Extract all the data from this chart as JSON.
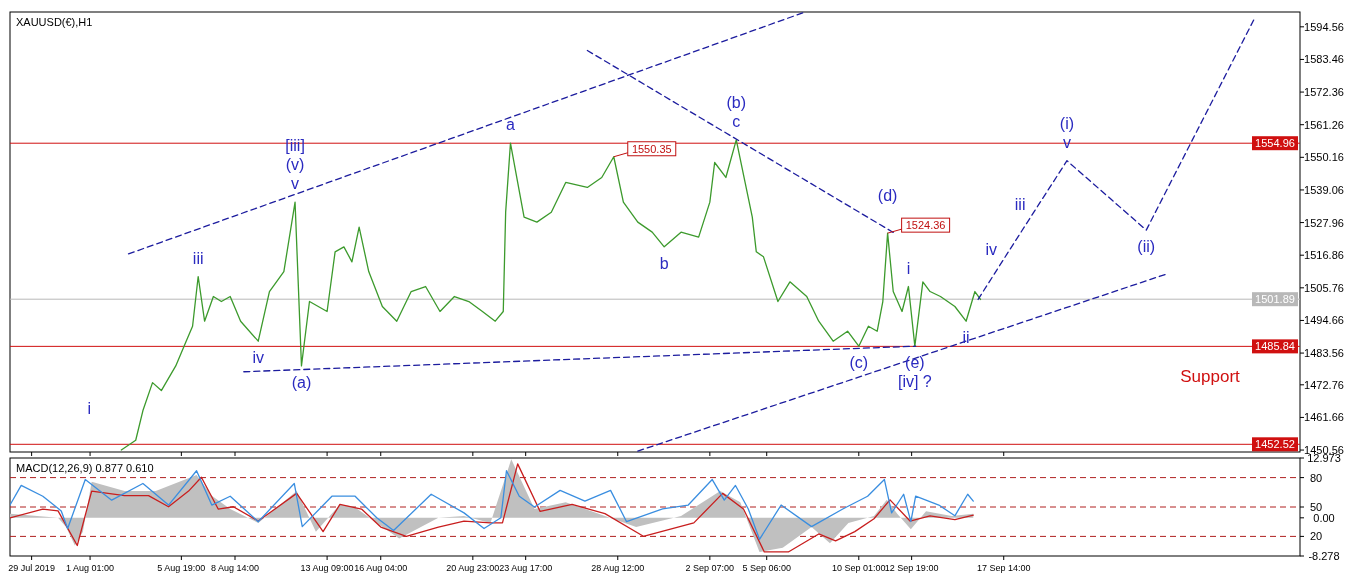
{
  "chart_data": [
    {
      "type": "line",
      "title": "XAUUSD(€),H1",
      "xlim": [
        "2019-07-27T21:00",
        "2019-10-03T00:00"
      ],
      "ylim": [
        1449.9,
        1599.6
      ],
      "tick_labels": "y",
      "xticks": [
        {
          "value": "2019-07-29T00:00",
          "label": null
        },
        {
          "value": "2019-08-01T01:00",
          "label": null
        },
        {
          "value": "2019-08-05T19:00",
          "label": null
        },
        {
          "value": "2019-08-08T14:00",
          "label": null
        },
        {
          "value": "2019-08-13T09:00",
          "label": null
        },
        {
          "value": "2019-08-16T04:00",
          "label": null
        },
        {
          "value": "2019-08-20T23:00",
          "label": null
        },
        {
          "value": "2019-08-23T17:00",
          "label": null
        },
        {
          "value": "2019-08-28T12:00",
          "label": null
        },
        {
          "value": "2019-09-02T07:00",
          "label": null
        },
        {
          "value": "2019-09-05T06:00",
          "label": null
        },
        {
          "value": "2019-09-10T01:00",
          "label": null
        },
        {
          "value": "2019-09-12T19:00",
          "label": null
        },
        {
          "value": "2019-09-17T14:00",
          "label": null
        }
      ],
      "yticks": [
        1594.56,
        1583.46,
        1572.36,
        1561.26,
        1550.16,
        1539.06,
        1527.96,
        1516.86,
        1505.76,
        1494.66,
        1483.56,
        1472.76,
        1461.66,
        1450.56
      ],
      "series": [
        {
          "color": "#3c9a2c",
          "x": [
            "2019-08-02T16:00",
            "2019-08-03T10:00",
            "2019-08-03T19:00",
            "2019-08-04T07:00",
            "2019-08-04T18:00",
            "2019-08-05T12:00",
            "2019-08-06T01:00",
            "2019-08-06T09:00",
            "2019-08-06T16:00",
            "2019-08-07T00:00",
            "2019-08-07T11:00",
            "2019-08-07T21:00",
            "2019-08-08T08:00",
            "2019-08-08T21:00",
            "2019-08-09T19:00",
            "2019-08-10T09:00",
            "2019-08-11T03:00",
            "2019-08-11T17:00",
            "2019-08-12T01:00",
            "2019-08-12T11:00",
            "2019-08-13T09:00",
            "2019-08-13T19:00",
            "2019-08-14T06:00",
            "2019-08-14T16:00",
            "2019-08-15T01:00",
            "2019-08-15T13:00",
            "2019-08-16T06:00",
            "2019-08-17T00:00",
            "2019-08-17T18:00",
            "2019-08-18T12:00",
            "2019-08-19T06:00",
            "2019-08-20T00:00",
            "2019-08-20T18:00",
            "2019-08-21T11:00",
            "2019-08-22T03:00",
            "2019-08-22T13:00",
            "2019-08-22T16:00",
            "2019-08-22T22:00",
            "2019-08-23T07:00",
            "2019-08-23T15:00",
            "2019-08-24T07:00",
            "2019-08-25T01:00",
            "2019-08-25T19:00",
            "2019-08-26T22:00",
            "2019-08-27T16:00",
            "2019-08-28T07:00",
            "2019-08-28T19:00",
            "2019-08-29T13:00",
            "2019-08-30T07:00",
            "2019-08-30T22:00",
            "2019-08-31T19:00",
            "2019-09-01T17:00",
            "2019-09-02T07:00",
            "2019-09-02T13:00",
            "2019-09-03T03:00",
            "2019-09-03T16:00",
            "2019-09-04T03:00",
            "2019-09-04T12:00",
            "2019-09-04T17:00",
            "2019-09-05T02:00",
            "2019-09-05T20:00",
            "2019-09-06T11:00",
            "2019-09-07T08:00",
            "2019-09-07T23:00",
            "2019-09-08T17:00",
            "2019-09-09T11:00",
            "2019-09-10T01:00",
            "2019-09-10T13:00",
            "2019-09-11T00:00",
            "2019-09-11T07:00",
            "2019-09-11T13:00",
            "2019-09-11T20:00",
            "2019-09-12T07:00",
            "2019-09-12T15:00",
            "2019-09-12T23:00",
            "2019-09-13T09:00",
            "2019-09-13T18:00",
            "2019-09-14T07:00",
            "2019-09-15T01:00",
            "2019-09-15T15:00",
            "2019-09-16T02:00",
            "2019-09-16T09:00"
          ],
          "values": [
            1450.6,
            1453.9,
            1464.0,
            1473.5,
            1470.8,
            1479.2,
            1487.6,
            1492.7,
            1509.6,
            1494.4,
            1502.8,
            1501.1,
            1502.8,
            1494.4,
            1487.6,
            1504.5,
            1511.3,
            1534.9,
            1479.2,
            1501.1,
            1497.7,
            1518.0,
            1519.7,
            1514.6,
            1526.4,
            1511.3,
            1499.4,
            1494.4,
            1504.5,
            1506.2,
            1497.7,
            1502.8,
            1501.1,
            1497.7,
            1494.4,
            1497.7,
            1531.5,
            1555.0,
            1541.6,
            1529.8,
            1528.1,
            1531.5,
            1541.6,
            1539.9,
            1543.3,
            1550.35,
            1534.9,
            1528.1,
            1524.7,
            1519.7,
            1524.7,
            1523.0,
            1534.9,
            1548.4,
            1543.3,
            1556.1,
            1541.6,
            1529.8,
            1518.0,
            1516.3,
            1501.1,
            1507.8,
            1502.8,
            1494.4,
            1487.6,
            1491.0,
            1485.9,
            1492.7,
            1491.0,
            1501.1,
            1524.36,
            1504.5,
            1497.7,
            1506.2,
            1485.9,
            1507.8,
            1504.5,
            1502.8,
            1499.4,
            1494.4,
            1504.5,
            1501.8
          ]
        },
        {
          "color": "#1c1c9e",
          "line_style": "dashed",
          "x": [
            "2019-08-03T01:00",
            "2019-09-07T05:00"
          ],
          "values": [
            1517.3,
            1599.5
          ]
        },
        {
          "color": "#1c1c9e",
          "line_style": "dashed",
          "x": [
            "2019-08-26T22:00",
            "2019-09-11T20:00"
          ],
          "values": [
            1586.5,
            1524.6
          ]
        },
        {
          "color": "#1c1c9e",
          "line_style": "dashed",
          "x": [
            "2019-08-09T01:00",
            "2019-09-13T00:00"
          ],
          "values": [
            1477.2,
            1485.9
          ]
        },
        {
          "color": "#1c1c9e",
          "line_style": "dashed",
          "x": [
            "2019-08-29T13:00",
            "2019-09-26T03:00"
          ],
          "values": [
            1450.2,
            1510.6
          ]
        },
        {
          "color": "#1c1c9e",
          "line_style": "dashed",
          "x": [
            "2019-09-16T06:00",
            "2019-09-17T21:00",
            "2019-09-19T09:00",
            "2019-09-20T21:00",
            "2019-09-25T00:00",
            "2019-09-30T15:00"
          ],
          "values": [
            1501.8,
            1518.5,
            1533.8,
            1549.0,
            1525.4,
            1597.3
          ]
        }
      ],
      "ref_lines": [
        {
          "axis": "y",
          "value": 1554.96,
          "label": "1554.96",
          "color": "#d01010"
        },
        {
          "axis": "y",
          "value": 1501.89,
          "label": "1501.89",
          "color": "#b8b8b8"
        },
        {
          "axis": "y",
          "value": 1485.84,
          "label": "1485.84",
          "color": "#d01010"
        },
        {
          "axis": "y",
          "value": 1452.52,
          "label": "1452.52",
          "color": "#d01010"
        }
      ],
      "annotations": [
        {
          "text": "v",
          "x": "2019-08-11T17:00",
          "y": 1534.9
        },
        {
          "text": "(v)",
          "x": "2019-08-11T17:00",
          "y": 1534.9
        },
        {
          "text": "[iii]",
          "x": "2019-08-11T17:00",
          "y": 1534.9
        },
        {
          "text": "iii",
          "x": "2019-08-06T16:00",
          "y": 1509.6
        },
        {
          "text": "iv",
          "x": "2019-08-09T19:00",
          "y": 1487.6
        },
        {
          "text": "i",
          "x": "2019-08-02T16:00",
          "y": 1450.6
        },
        {
          "text": "(a)",
          "x": "2019-08-12T01:00",
          "y": 1479.2
        },
        {
          "text": "a",
          "x": "2019-08-22T22:00",
          "y": 1555.0
        },
        {
          "text": "b",
          "x": "2019-08-30T22:00",
          "y": 1519.7
        },
        {
          "text": "c",
          "x": "2019-09-03T16:00",
          "y": 1556.1
        },
        {
          "text": "(b)",
          "x": "2019-09-03T16:00",
          "y": 1556.1
        },
        {
          "text": "1550.35",
          "x": "2019-08-28T07:00",
          "y": 1550.35
        },
        {
          "text": "1524.36",
          "x": "2019-09-11T13:00",
          "y": 1524.36
        },
        {
          "text": "(d)",
          "x": "2019-09-11T13:00",
          "y": 1524.36
        },
        {
          "text": "i",
          "x": "2019-09-12T15:00",
          "y": 1506.2
        },
        {
          "text": "(c)",
          "x": "2019-09-10T01:00",
          "y": 1485.9
        },
        {
          "text": "(e)",
          "x": "2019-09-12T23:00",
          "y": 1485.9
        },
        {
          "text": "[iv] ?",
          "x": "2019-09-12T23:00",
          "y": 1485.9
        },
        {
          "text": "ii",
          "x": "2019-09-15T15:00",
          "y": 1494.4
        },
        {
          "text": "iv",
          "x": "2019-09-17T21:00",
          "y": 1518.5
        },
        {
          "text": "iii",
          "x": "2019-09-19T09:00",
          "y": 1533.8
        },
        {
          "text": "v",
          "x": "2019-09-20T21:00",
          "y": 1549.0
        },
        {
          "text": "(i)",
          "x": "2019-09-20T21:00",
          "y": 1549.0
        },
        {
          "text": "(ii)",
          "x": "2019-09-25T00:00",
          "y": 1525.4
        },
        "Support"
      ]
    },
    {
      "type": "line",
      "title": "MACD(12,26,9) 0.877 0.610",
      "xlim": [
        "2019-07-27T21:00",
        "2019-10-03T00:00"
      ],
      "ylim": [
        -8.278,
        12.973
      ],
      "y2lim": [
        0,
        100
      ],
      "xticks": [
        {
          "value": "2019-07-29T00:00",
          "label": "29 Jul 2019"
        },
        {
          "value": "2019-08-01T01:00",
          "label": "1 Aug 01:00"
        },
        {
          "value": "2019-08-05T19:00",
          "label": "5 Aug 19:00"
        },
        {
          "value": "2019-08-08T14:00",
          "label": "8 Aug 14:00"
        },
        {
          "value": "2019-08-13T09:00",
          "label": "13 Aug 09:00"
        },
        {
          "value": "2019-08-16T04:00",
          "label": "16 Aug 04:00"
        },
        {
          "value": "2019-08-20T23:00",
          "label": "20 Aug 23:00"
        },
        {
          "value": "2019-08-23T17:00",
          "label": "23 Aug 17:00"
        },
        {
          "value": "2019-08-28T12:00",
          "label": "28 Aug 12:00"
        },
        {
          "value": "2019-09-02T07:00",
          "label": "2 Sep 07:00"
        },
        {
          "value": "2019-09-05T06:00",
          "label": "5 Sep 06:00"
        },
        {
          "value": "2019-09-10T01:00",
          "label": "10 Sep 01:00"
        },
        {
          "value": "2019-09-12T19:00",
          "label": "12 Sep 19:00"
        },
        {
          "value": "2019-09-17T14:00",
          "label": "17 Sep 14:00"
        }
      ],
      "yticks": [
        12.973,
        {
          "value": 0,
          "label": "0.00"
        },
        -8.278
      ],
      "y2ticks": [
        80,
        50,
        20
      ],
      "series": [
        {
          "type": "area",
          "color": "#c0c0c0",
          "x": [
            "2019-07-27T21:00",
            "2019-07-30T09:00",
            "2019-07-30T19:00",
            "2019-07-31T06:00",
            "2019-07-31T16:00",
            "2019-08-01T03:00",
            "2019-08-02T20:00",
            "2019-08-04T11:00",
            "2019-08-06T14:00",
            "2019-08-07T09:00",
            "2019-08-08T08:00",
            "2019-08-09T19:00",
            "2019-08-11T19:00",
            "2019-08-12T19:00",
            "2019-08-14T01:00",
            "2019-08-14T19:00",
            "2019-08-15T23:00",
            "2019-08-17T03:00",
            "2019-08-19T04:00",
            "2019-08-20T12:00",
            "2019-08-21T21:00",
            "2019-08-22T23:00",
            "2019-08-24T04:00",
            "2019-08-25T19:00",
            "2019-08-27T20:00",
            "2019-08-29T11:00",
            "2019-08-31T19:00",
            "2019-09-02T20:00",
            "2019-09-03T21:00",
            "2019-09-04T21:00",
            "2019-09-06T02:00",
            "2019-09-07T14:00",
            "2019-09-08T13:00",
            "2019-09-09T12:00",
            "2019-09-10T20:00",
            "2019-09-11T12:00",
            "2019-09-12T01:00",
            "2019-09-12T18:00",
            "2019-09-13T13:00",
            "2019-09-14T21:00",
            "2019-09-16T00:00"
          ],
          "values": [
            0.9,
            0.0,
            -2.0,
            -6.0,
            -3.0,
            7.8,
            5.8,
            5.8,
            9.3,
            4.8,
            1.9,
            -1.1,
            5.8,
            -3.0,
            2.9,
            2.4,
            -1.1,
            -4.5,
            0.0,
            0.4,
            -1.1,
            12.7,
            1.9,
            3.4,
            0.4,
            -2.0,
            0.4,
            5.8,
            3.4,
            -7.4,
            -6.5,
            -2.0,
            -5.5,
            -1.1,
            0.4,
            3.9,
            0.9,
            -2.5,
            1.4,
            0.4,
            0.9
          ]
        },
        {
          "color": "#c81e1e",
          "x": [
            "2019-07-27T21:00",
            "2019-07-29T14:00",
            "2019-07-30T09:00",
            "2019-07-31T09:00",
            "2019-08-01T03:00",
            "2019-08-02T20:00",
            "2019-08-04T02:00",
            "2019-08-05T03:00",
            "2019-08-06T04:00",
            "2019-08-06T20:00",
            "2019-08-07T17:00",
            "2019-08-08T12:00",
            "2019-08-09T19:00",
            "2019-08-11T19:00",
            "2019-08-13T04:00",
            "2019-08-14T01:00",
            "2019-08-15T04:00",
            "2019-08-16T04:00",
            "2019-08-17T12:00",
            "2019-08-19T04:00",
            "2019-08-20T12:00",
            "2019-08-21T21:00",
            "2019-08-22T12:00",
            "2019-08-23T07:00",
            "2019-08-24T11:00",
            "2019-08-26T03:00",
            "2019-08-27T20:00",
            "2019-08-29T20:00",
            "2019-09-01T11:00",
            "2019-09-02T23:00",
            "2019-09-04T01:00",
            "2019-09-05T03:00",
            "2019-09-06T09:00",
            "2019-09-07T23:00",
            "2019-09-08T20:00",
            "2019-09-09T20:00",
            "2019-09-10T20:00",
            "2019-09-11T16:00",
            "2019-09-12T17:00",
            "2019-09-13T18:00",
            "2019-09-15T01:00",
            "2019-09-16T00:00"
          ],
          "values": [
            0.0,
            1.9,
            1.5,
            -6.0,
            5.8,
            4.8,
            4.8,
            2.4,
            5.8,
            8.8,
            1.9,
            2.4,
            -0.7,
            5.3,
            -3.0,
            2.9,
            1.9,
            -2.0,
            -4.0,
            -2.0,
            -0.7,
            -1.1,
            -1.1,
            11.7,
            1.4,
            2.9,
            0.9,
            -4.0,
            -1.1,
            5.3,
            1.9,
            -7.4,
            -7.4,
            -3.5,
            -5.0,
            -3.0,
            -0.2,
            3.9,
            -0.7,
            0.4,
            -0.4,
            0.6
          ]
        },
        {
          "axis": "y2",
          "color": "#3a8ee0",
          "x": [
            "2019-07-27T21:00",
            "2019-07-28T11:00",
            "2019-07-29T14:00",
            "2019-07-30T13:00",
            "2019-07-30T21:00",
            "2019-07-31T19:00",
            "2019-08-02T04:00",
            "2019-08-03T19:00",
            "2019-08-05T03:00",
            "2019-08-06T14:00",
            "2019-08-07T09:00",
            "2019-08-08T08:00",
            "2019-08-09T19:00",
            "2019-08-11T16:00",
            "2019-08-12T02:00",
            "2019-08-13T15:00",
            "2019-08-14T20:00",
            "2019-08-15T23:00",
            "2019-08-16T20:00",
            "2019-08-18T19:00",
            "2019-08-20T12:00",
            "2019-08-21T13:00",
            "2019-08-22T10:00",
            "2019-08-22T17:00",
            "2019-08-23T09:00",
            "2019-08-24T04:00",
            "2019-08-25T12:00",
            "2019-08-26T19:00",
            "2019-08-28T03:00",
            "2019-08-28T23:00",
            "2019-08-30T20:00",
            "2019-09-01T04:00",
            "2019-09-02T10:00",
            "2019-09-03T01:00",
            "2019-09-03T15:00",
            "2019-09-04T07:00",
            "2019-09-04T21:00",
            "2019-09-06T00:00",
            "2019-09-07T14:00",
            "2019-09-09T05:00",
            "2019-09-10T12:00",
            "2019-09-11T09:00",
            "2019-09-11T18:00",
            "2019-09-12T09:00",
            "2019-09-12T18:00",
            "2019-09-13T00:00",
            "2019-09-14T05:00",
            "2019-09-15T01:00",
            "2019-09-15T17:00",
            "2019-09-16T00:00"
          ],
          "values": [
            52,
            72,
            61,
            46,
            28,
            78,
            57,
            74,
            52,
            87,
            52,
            61,
            35,
            74,
            30,
            61,
            61,
            39,
            26,
            63,
            44,
            28,
            39,
            87,
            61,
            50,
            67,
            56,
            67,
            35,
            48,
            52,
            78,
            57,
            72,
            48,
            17,
            52,
            30,
            48,
            61,
            78,
            44,
            63,
            35,
            61,
            52,
            41,
            63,
            56
          ]
        }
      ],
      "ref_lines": [
        {
          "axis": "y2",
          "value": 80,
          "color": "#b02020",
          "line_style": "dashed"
        },
        {
          "axis": "y2",
          "value": 50,
          "color": "#b02020",
          "line_style": "dashed"
        },
        {
          "axis": "y2",
          "value": 20,
          "color": "#b02020",
          "line_style": "dashed"
        }
      ]
    }
  ]
}
